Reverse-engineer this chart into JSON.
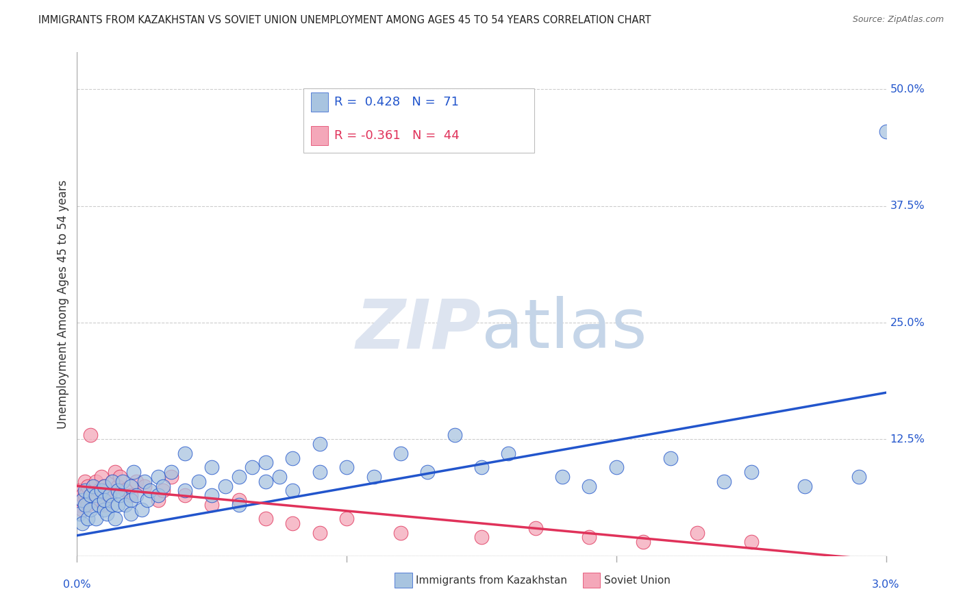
{
  "title": "IMMIGRANTS FROM KAZAKHSTAN VS SOVIET UNION UNEMPLOYMENT AMONG AGES 45 TO 54 YEARS CORRELATION CHART",
  "source": "Source: ZipAtlas.com",
  "ylabel": "Unemployment Among Ages 45 to 54 years",
  "xlim": [
    0.0,
    0.03
  ],
  "ylim": [
    0.0,
    0.54
  ],
  "yticks": [
    0.0,
    0.125,
    0.25,
    0.375,
    0.5
  ],
  "ytick_labels": [
    "",
    "12.5%",
    "25.0%",
    "37.5%",
    "50.0%"
  ],
  "kaz_R": 0.428,
  "kaz_N": 71,
  "sov_R": -0.361,
  "sov_N": 44,
  "kaz_color": "#a8c4e0",
  "sov_color": "#f4a7b9",
  "kaz_line_color": "#2255cc",
  "sov_line_color": "#e0325a",
  "background_color": "#ffffff",
  "grid_color": "#cccccc",
  "title_color": "#222222",
  "axis_label_color": "#2255cc",
  "kaz_scatter_x": [
    0.0001,
    0.0002,
    0.0002,
    0.0003,
    0.0003,
    0.0004,
    0.0005,
    0.0005,
    0.0006,
    0.0007,
    0.0007,
    0.0008,
    0.0009,
    0.001,
    0.001,
    0.001,
    0.0011,
    0.0012,
    0.0013,
    0.0013,
    0.0014,
    0.0015,
    0.0015,
    0.0016,
    0.0017,
    0.0018,
    0.002,
    0.002,
    0.002,
    0.0021,
    0.0022,
    0.0024,
    0.0025,
    0.0026,
    0.0027,
    0.003,
    0.003,
    0.0032,
    0.0035,
    0.004,
    0.004,
    0.0045,
    0.005,
    0.005,
    0.0055,
    0.006,
    0.006,
    0.0065,
    0.007,
    0.007,
    0.0075,
    0.008,
    0.008,
    0.009,
    0.009,
    0.01,
    0.011,
    0.012,
    0.013,
    0.014,
    0.015,
    0.016,
    0.018,
    0.019,
    0.02,
    0.022,
    0.024,
    0.025,
    0.027,
    0.029,
    0.03
  ],
  "kaz_scatter_y": [
    0.045,
    0.06,
    0.035,
    0.055,
    0.07,
    0.04,
    0.065,
    0.05,
    0.075,
    0.04,
    0.065,
    0.055,
    0.07,
    0.05,
    0.075,
    0.06,
    0.045,
    0.065,
    0.055,
    0.08,
    0.04,
    0.07,
    0.055,
    0.065,
    0.08,
    0.055,
    0.06,
    0.075,
    0.045,
    0.09,
    0.065,
    0.05,
    0.08,
    0.06,
    0.07,
    0.065,
    0.085,
    0.075,
    0.09,
    0.07,
    0.11,
    0.08,
    0.065,
    0.095,
    0.075,
    0.085,
    0.055,
    0.095,
    0.08,
    0.1,
    0.085,
    0.07,
    0.105,
    0.09,
    0.12,
    0.095,
    0.085,
    0.11,
    0.09,
    0.13,
    0.095,
    0.11,
    0.085,
    0.075,
    0.095,
    0.105,
    0.08,
    0.09,
    0.075,
    0.085,
    0.455
  ],
  "sov_scatter_x": [
    0.0001,
    0.0001,
    0.0002,
    0.0002,
    0.0003,
    0.0003,
    0.0004,
    0.0004,
    0.0005,
    0.0005,
    0.0006,
    0.0007,
    0.0007,
    0.0008,
    0.0009,
    0.001,
    0.001,
    0.0011,
    0.0012,
    0.0013,
    0.0014,
    0.0015,
    0.0016,
    0.0018,
    0.002,
    0.0022,
    0.0025,
    0.003,
    0.0032,
    0.0035,
    0.004,
    0.005,
    0.006,
    0.007,
    0.008,
    0.009,
    0.01,
    0.012,
    0.015,
    0.017,
    0.019,
    0.021,
    0.023,
    0.025
  ],
  "sov_scatter_y": [
    0.07,
    0.055,
    0.065,
    0.05,
    0.08,
    0.065,
    0.075,
    0.055,
    0.13,
    0.065,
    0.075,
    0.06,
    0.08,
    0.07,
    0.085,
    0.055,
    0.075,
    0.07,
    0.065,
    0.08,
    0.09,
    0.075,
    0.085,
    0.07,
    0.065,
    0.08,
    0.075,
    0.06,
    0.07,
    0.085,
    0.065,
    0.055,
    0.06,
    0.04,
    0.035,
    0.025,
    0.04,
    0.025,
    0.02,
    0.03,
    0.02,
    0.015,
    0.025,
    0.015
  ],
  "kaz_line_x0": 0.0,
  "kaz_line_y0": 0.022,
  "kaz_line_x1": 0.03,
  "kaz_line_y1": 0.175,
  "sov_line_x0": 0.0,
  "sov_line_y0": 0.075,
  "sov_line_x1": 0.03,
  "sov_line_y1": -0.005
}
